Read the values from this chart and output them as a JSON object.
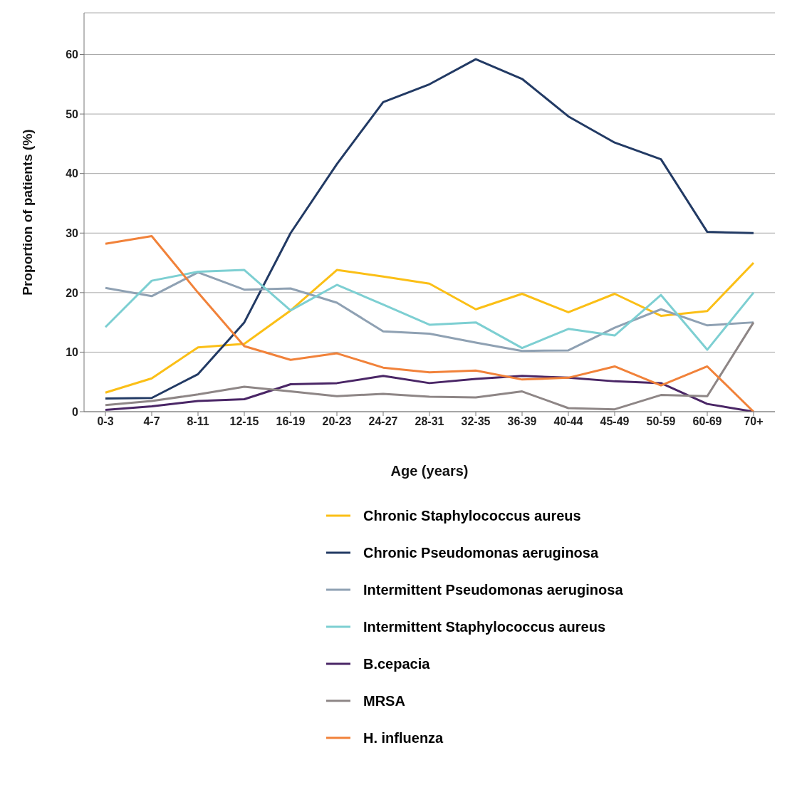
{
  "chart_data": {
    "type": "line",
    "xlabel": "Age (years)",
    "ylabel": "Proportion of patients (%)",
    "categories": [
      "0-3",
      "4-7",
      "8-11",
      "12-15",
      "16-19",
      "20-23",
      "24-27",
      "28-31",
      "32-35",
      "36-39",
      "40-44",
      "45-49",
      "50-59",
      "60-69",
      "70+"
    ],
    "ylim": [
      0,
      67
    ],
    "yticks": [
      0,
      10,
      20,
      30,
      40,
      50,
      60
    ],
    "grid": "y",
    "legend": "bottom",
    "marker": "none",
    "line_style": "solid",
    "series": [
      {
        "name": "Chronic Staphylococcus aureus",
        "color": "#fbbf16",
        "values": [
          3.2,
          5.6,
          10.8,
          11.4,
          17,
          23.8,
          22.7,
          21.5,
          17.2,
          19.8,
          16.7,
          19.8,
          16.1,
          16.9,
          25
        ]
      },
      {
        "name": "Chronic Pseudomonas aeruginosa",
        "color": "#223a64",
        "values": [
          2.2,
          2.3,
          6.3,
          15,
          30,
          41.6,
          52,
          55,
          59.2,
          55.9,
          49.6,
          45.2,
          42.4,
          30.2,
          30
        ]
      },
      {
        "name": "Intermittent Pseudomonas aeruginosa",
        "color": "#8fa1b3",
        "values": [
          20.8,
          19.4,
          23.4,
          20.5,
          20.7,
          18.3,
          13.5,
          13.1,
          11.6,
          10.2,
          10.3,
          14.1,
          17.2,
          14.5,
          15
        ]
      },
      {
        "name": "Intermittent Staphylococcus aureus",
        "color": "#7dcfd2",
        "values": [
          14.2,
          22,
          23.5,
          23.8,
          17,
          21.3,
          18,
          14.6,
          15,
          10.7,
          13.9,
          12.8,
          19.6,
          10.4,
          20
        ]
      },
      {
        "name": "B.cepacia",
        "color": "#4a2666",
        "values": [
          0.3,
          0.9,
          1.8,
          2.1,
          4.6,
          4.8,
          6,
          4.8,
          5.5,
          6,
          5.7,
          5.1,
          4.8,
          1.3,
          0
        ]
      },
      {
        "name": "MRSA",
        "color": "#8e8686",
        "values": [
          1.1,
          1.8,
          2.9,
          4.2,
          3.4,
          2.6,
          3,
          2.5,
          2.4,
          3.4,
          0.6,
          0.4,
          2.8,
          2.6,
          15
        ]
      },
      {
        "name": "H. influenza",
        "color": "#f1823a",
        "values": [
          28.2,
          29.5,
          20,
          11,
          8.7,
          9.8,
          7.4,
          6.6,
          6.9,
          5.4,
          5.7,
          7.6,
          4.4,
          7.6,
          0
        ]
      }
    ]
  }
}
